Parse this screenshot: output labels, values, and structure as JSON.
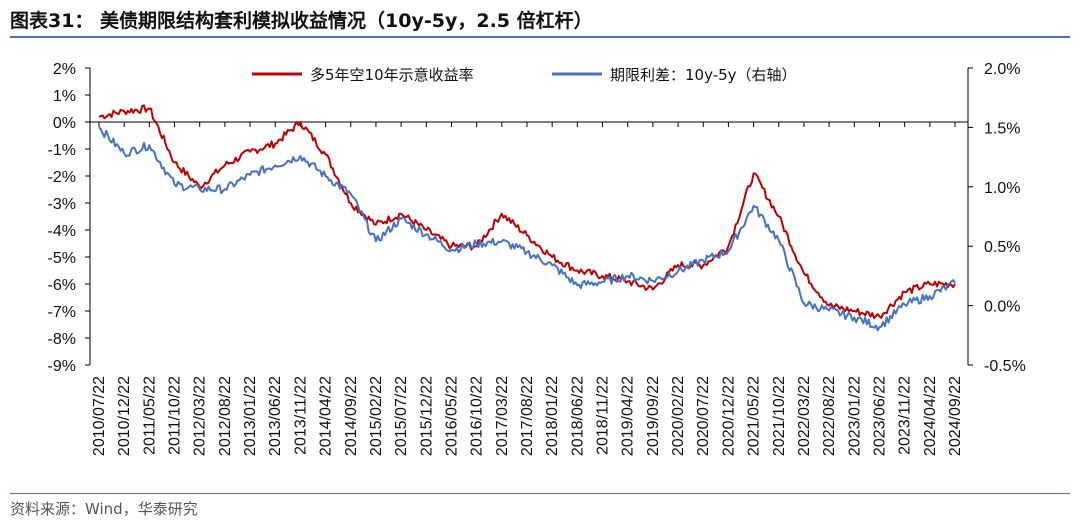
{
  "header": {
    "title": "图表31：  美债期限结构套利模拟收益情况（10y-5y，2.5 倍杠杆）",
    "source": "资料来源：Wind，华泰研究"
  },
  "chart_data": {
    "type": "line",
    "title": "图表31：  美债期限结构套利模拟收益情况（10y-5y，2.5 倍杠杆）",
    "x_tick_labels": [
      "2010/07/22",
      "2010/12/22",
      "2011/05/22",
      "2011/10/22",
      "2012/03/22",
      "2012/08/22",
      "2013/01/22",
      "2013/06/22",
      "2013/11/22",
      "2014/04/22",
      "2014/09/22",
      "2015/02/22",
      "2015/07/22",
      "2015/12/22",
      "2016/05/22",
      "2016/10/22",
      "2017/03/22",
      "2017/08/22",
      "2018/01/22",
      "2018/06/22",
      "2018/11/22",
      "2019/04/22",
      "2019/09/22",
      "2020/02/22",
      "2020/07/22",
      "2020/12/22",
      "2021/05/22",
      "2021/10/22",
      "2022/03/22",
      "2022/08/22",
      "2023/01/22",
      "2023/06/22",
      "2023/11/22",
      "2024/04/22",
      "2024/09/22"
    ],
    "y_left": {
      "ylim": [
        -9,
        2
      ],
      "ticks": [
        "2%",
        "1%",
        "0%",
        "-1%",
        "-2%",
        "-3%",
        "-4%",
        "-5%",
        "-6%",
        "-7%",
        "-8%",
        "-9%"
      ]
    },
    "y_right": {
      "ylim": [
        -0.5,
        2.0
      ],
      "ticks": [
        "2.0%",
        "1.5%",
        "1.0%",
        "0.5%",
        "0.0%",
        "-0.5%"
      ]
    },
    "legend_position": "top",
    "grid": false,
    "colors": {
      "left_series": "#c00000",
      "right_series": "#4472c4",
      "axis": "#000000"
    },
    "x_index": [
      0,
      1,
      2,
      3,
      4,
      5,
      6,
      7,
      8,
      9,
      10,
      11,
      12,
      13,
      14,
      15,
      16,
      17,
      18,
      19,
      20,
      21,
      22,
      23,
      24,
      25,
      26,
      27,
      28,
      29,
      30,
      31,
      32,
      33,
      34
    ],
    "series": [
      {
        "name": "多5年空10年示意收益率",
        "axis": "left",
        "unit": "%",
        "values": [
          0.2,
          0.4,
          0.5,
          -1.5,
          -2.4,
          -1.6,
          -1.1,
          -0.8,
          0.0,
          -1.2,
          -3.0,
          -3.8,
          -3.4,
          -4.0,
          -4.6,
          -4.6,
          -3.4,
          -4.2,
          -5.0,
          -5.5,
          -5.7,
          -5.9,
          -6.2,
          -5.3,
          -5.3,
          -4.6,
          -1.9,
          -3.5,
          -5.6,
          -6.8,
          -7.0,
          -7.2,
          -6.3,
          -6.0,
          -6.0
        ]
      },
      {
        "name": "期限利差：10y-5y（右轴）",
        "axis": "right",
        "unit": "%",
        "values": [
          1.5,
          1.28,
          1.35,
          1.02,
          0.98,
          0.98,
          1.1,
          1.18,
          1.26,
          1.09,
          0.94,
          0.54,
          0.73,
          0.6,
          0.47,
          0.52,
          0.54,
          0.45,
          0.34,
          0.17,
          0.2,
          0.25,
          0.21,
          0.29,
          0.38,
          0.46,
          0.84,
          0.55,
          0.02,
          -0.04,
          -0.1,
          -0.18,
          0.01,
          0.08,
          0.19
        ]
      }
    ]
  }
}
